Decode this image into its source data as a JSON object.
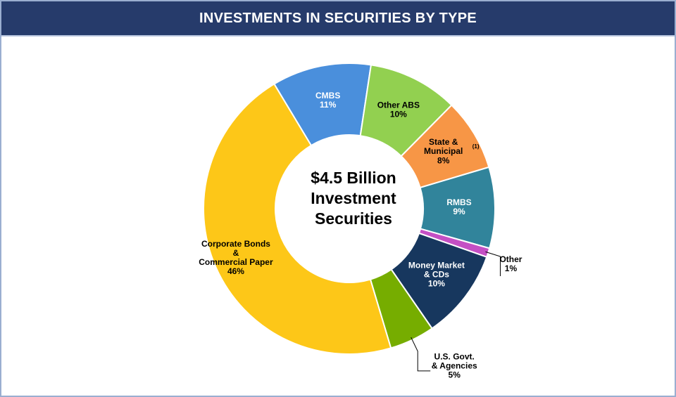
{
  "chart_data": {
    "type": "donut",
    "title": "INVESTMENTS IN SECURITIES BY TYPE",
    "center_text": "$4.5 Billion\nInvestment\nSecurities",
    "categories": [
      "CMBS",
      "Other ABS",
      "State &\nMunicipal",
      "RMBS",
      "Other",
      "Money Market\n& CDs",
      "U.S. Govt.\n& Agencies",
      "Corporate Bonds\n&\nCommercial Paper"
    ],
    "category_notes": [
      null,
      null,
      "(1)",
      null,
      null,
      null,
      null,
      null
    ],
    "values": [
      11,
      10,
      8,
      9,
      1,
      10,
      5,
      46
    ],
    "value_labels": [
      "11%",
      "10%",
      "8%",
      "9%",
      "1%",
      "10%",
      "5%",
      "46%"
    ],
    "colors": [
      "#4a8fdc",
      "#92d050",
      "#f79646",
      "#31849b",
      "#c44fc4",
      "#17375e",
      "#76ad00",
      "#fdc718"
    ]
  }
}
